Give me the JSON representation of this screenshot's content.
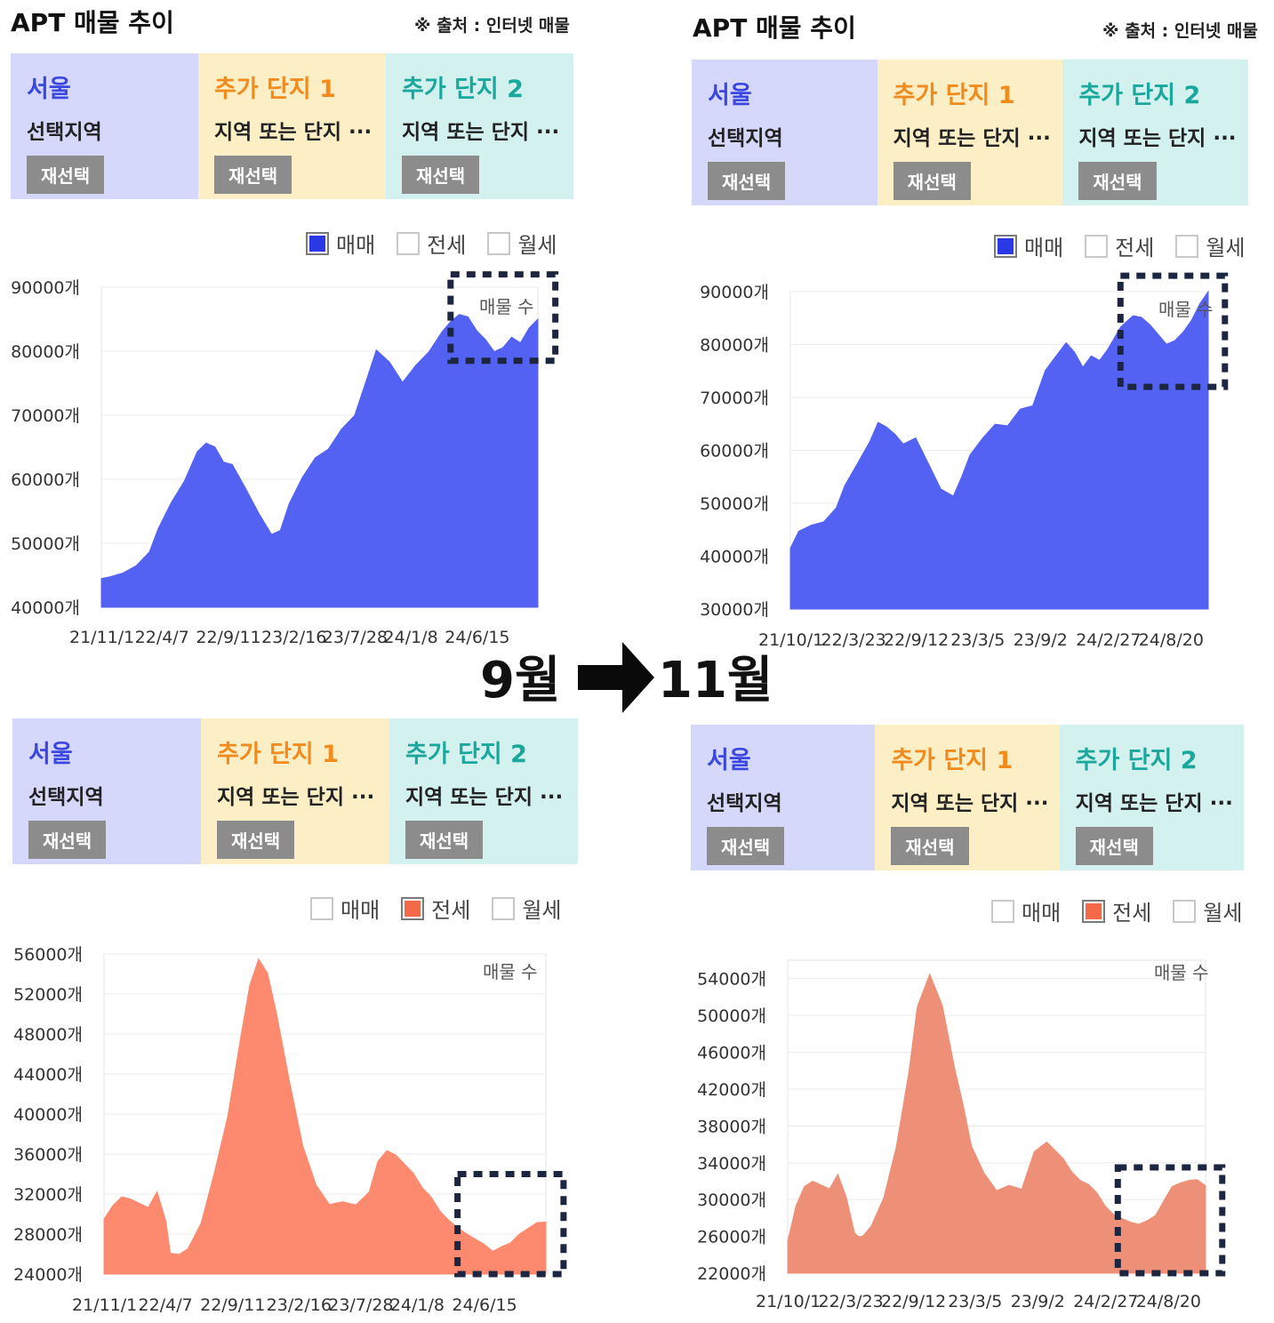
{
  "panels": [
    {
      "title": "APT 매물 추이",
      "source": "※ 출처 : 인터넷 매물",
      "tabs": [
        {
          "head": "서울",
          "sub": "선택지역",
          "btn": "재선택"
        },
        {
          "head": "추가 단지 1",
          "sub": "지역 또는 단지 ···",
          "btn": "재선택"
        },
        {
          "head": "추가 단지 2",
          "sub": "지역 또는 단지 ···",
          "btn": "재선택"
        }
      ],
      "legend": [
        {
          "label": "매매",
          "checked": true
        },
        {
          "label": "전세",
          "checked": false
        },
        {
          "label": "월세",
          "checked": false
        }
      ]
    },
    {
      "title": "APT 매물 추이",
      "source": "※ 출처 : 인터넷 매물",
      "tabs": [
        {
          "head": "서울",
          "sub": "선택지역",
          "btn": "재선택"
        },
        {
          "head": "추가 단지 1",
          "sub": "지역 또는 단지 ···",
          "btn": "재선택"
        },
        {
          "head": "추가 단지 2",
          "sub": "지역 또는 단지 ···",
          "btn": "재선택"
        }
      ],
      "legend": [
        {
          "label": "매매",
          "checked": true
        },
        {
          "label": "전세",
          "checked": false
        },
        {
          "label": "월세",
          "checked": false
        }
      ]
    },
    {
      "title": "",
      "source": "",
      "tabs": [
        {
          "head": "서울",
          "sub": "선택지역",
          "btn": "재선택"
        },
        {
          "head": "추가 단지 1",
          "sub": "지역 또는 단지 ···",
          "btn": "재선택"
        },
        {
          "head": "추가 단지 2",
          "sub": "지역 또는 단지 ···",
          "btn": "재선택"
        }
      ],
      "legend": [
        {
          "label": "매매",
          "checked": false
        },
        {
          "label": "전세",
          "checked": true
        },
        {
          "label": "월세",
          "checked": false
        }
      ]
    },
    {
      "title": "",
      "source": "",
      "tabs": [
        {
          "head": "서울",
          "sub": "선택지역",
          "btn": "재선택"
        },
        {
          "head": "추가 단지 1",
          "sub": "지역 또는 단지 ···",
          "btn": "재선택"
        },
        {
          "head": "추가 단지 2",
          "sub": "지역 또는 단지 ···",
          "btn": "재선택"
        }
      ],
      "legend": [
        {
          "label": "매매",
          "checked": false
        },
        {
          "label": "전세",
          "checked": true
        },
        {
          "label": "월세",
          "checked": false
        }
      ]
    }
  ],
  "colors": {
    "tab_bg": [
      "#d5d7fb",
      "#fdefc5",
      "#d3f1ee"
    ],
    "tab_head": [
      "#3b48e0",
      "#f28b1e",
      "#1aa89c"
    ],
    "sale": "#5462f4",
    "jeonse_sep": "#fd8a6e",
    "jeonse_nov": "#ee9077",
    "check_sale": "#2b38e6",
    "check_jeonse": "#f36a4b",
    "highlight_box": "#1c2640"
  },
  "transition": {
    "from": "9월",
    "to": "11월"
  },
  "chart_data": [
    {
      "type": "area",
      "series_label": "매물 수",
      "ylim": [
        40000,
        90000
      ],
      "y_ticks": [
        "40000개",
        "50000개",
        "60000개",
        "70000개",
        "80000개",
        "90000개"
      ],
      "x_ticks": [
        "21/11/1",
        "22/4/7",
        "22/9/11",
        "23/2/16",
        "23/7/28",
        "24/1/8",
        "24/6/15"
      ],
      "x_tick_positions": [
        0,
        0.15,
        0.29,
        0.44,
        0.58,
        0.72,
        0.86
      ],
      "x": [
        0,
        0.02,
        0.05,
        0.08,
        0.11,
        0.13,
        0.16,
        0.19,
        0.22,
        0.24,
        0.26,
        0.28,
        0.3,
        0.33,
        0.36,
        0.39,
        0.41,
        0.43,
        0.46,
        0.49,
        0.52,
        0.55,
        0.58,
        0.61,
        0.63,
        0.66,
        0.69,
        0.72,
        0.75,
        0.78,
        0.8,
        0.82,
        0.84,
        0.86,
        0.88,
        0.9,
        0.92,
        0.94,
        0.96,
        0.98,
        1
      ],
      "y": [
        44500,
        45000,
        45500,
        46500,
        48500,
        52000,
        56000,
        60000,
        64500,
        65700,
        65000,
        62500,
        62000,
        59000,
        55000,
        51500,
        52000,
        56000,
        60000,
        63000,
        65000,
        68000,
        70000,
        76000,
        80000,
        78000,
        75500,
        78000,
        80000,
        83000,
        84500,
        85500,
        85000,
        83500,
        82000,
        80000,
        80500,
        82000,
        81000,
        84000,
        85000
      ],
      "highlight": {
        "x0": 0.8,
        "x1": 1.04,
        "y0": 78500,
        "y1": 92000
      }
    },
    {
      "type": "area",
      "series_label": "매물 수",
      "ylim": [
        30000,
        90000
      ],
      "y_ticks": [
        "30000개",
        "40000개",
        "50000개",
        "60000개",
        "70000개",
        "80000개",
        "90000개"
      ],
      "x_ticks": [
        "21/10/1",
        "22/3/23",
        "22/9/12",
        "23/3/5",
        "23/9/2",
        "24/2/27",
        "24/8/20"
      ],
      "x_tick_positions": [
        0,
        0.15,
        0.3,
        0.46,
        0.61,
        0.76,
        0.91
      ],
      "x": [
        0,
        0.02,
        0.05,
        0.08,
        0.11,
        0.13,
        0.16,
        0.19,
        0.21,
        0.23,
        0.25,
        0.27,
        0.3,
        0.33,
        0.36,
        0.39,
        0.41,
        0.43,
        0.46,
        0.49,
        0.52,
        0.55,
        0.58,
        0.61,
        0.63,
        0.66,
        0.68,
        0.7,
        0.72,
        0.74,
        0.76,
        0.79,
        0.82,
        0.84,
        0.86,
        0.88,
        0.9,
        0.92,
        0.94,
        0.96,
        0.98,
        1
      ],
      "y": [
        41500,
        45000,
        46000,
        46500,
        49000,
        53000,
        57000,
        62000,
        65500,
        64500,
        63000,
        61000,
        62000,
        58000,
        53000,
        51500,
        55000,
        59000,
        62000,
        64500,
        65000,
        68000,
        68500,
        75000,
        77000,
        80000,
        79000,
        76000,
        78000,
        77000,
        79000,
        83000,
        85000,
        85500,
        84000,
        82000,
        80000,
        80500,
        82000,
        85000,
        88000,
        90000
      ],
      "highlight": {
        "x0": 0.79,
        "x1": 1.04,
        "y0": 72000,
        "y1": 93000
      }
    },
    {
      "type": "area",
      "series_label": "매물 수",
      "ylim": [
        24000,
        56000
      ],
      "y_ticks": [
        "24000개",
        "28000개",
        "32000개",
        "36000개",
        "40000개",
        "44000개",
        "48000개",
        "52000개",
        "56000개"
      ],
      "x_ticks": [
        "21/11/1",
        "22/4/7",
        "22/9/11",
        "23/2/16",
        "23/7/28",
        "24/1/8",
        "24/6/15"
      ],
      "x_tick_positions": [
        0,
        0.15,
        0.29,
        0.44,
        0.58,
        0.72,
        0.86
      ],
      "x": [
        0,
        0.02,
        0.04,
        0.06,
        0.08,
        0.1,
        0.12,
        0.14,
        0.15,
        0.17,
        0.19,
        0.22,
        0.25,
        0.28,
        0.31,
        0.33,
        0.35,
        0.37,
        0.39,
        0.42,
        0.45,
        0.48,
        0.51,
        0.54,
        0.57,
        0.6,
        0.62,
        0.64,
        0.66,
        0.68,
        0.7,
        0.72,
        0.74,
        0.76,
        0.78,
        0.8,
        0.82,
        0.84,
        0.86,
        0.88,
        0.9,
        0.92,
        0.94,
        0.96,
        0.98,
        1
      ],
      "y": [
        29500,
        31000,
        31800,
        31500,
        31000,
        30500,
        32000,
        29500,
        26200,
        26000,
        26500,
        29000,
        34000,
        40000,
        48000,
        53000,
        55500,
        54000,
        50000,
        43000,
        37000,
        33000,
        31000,
        31200,
        30800,
        32000,
        35500,
        36500,
        36000,
        35000,
        34000,
        32500,
        31500,
        30500,
        29500,
        28700,
        28000,
        27400,
        26800,
        26500,
        26900,
        27200,
        28000,
        28500,
        29000,
        29200
      ],
      "highlight": {
        "x0": 0.8,
        "x1": 1.04,
        "y0": 24000,
        "y1": 34000
      }
    },
    {
      "type": "area",
      "series_label": "매물 수",
      "ylim": [
        22000,
        56000
      ],
      "y_ticks": [
        "22000개",
        "26000개",
        "30000개",
        "34000개",
        "38000개",
        "42000개",
        "46000개",
        "50000개",
        "54000개"
      ],
      "x_ticks": [
        "21/10/1",
        "22/3/23",
        "22/9/12",
        "23/3/5",
        "23/9/2",
        "24/2/27",
        "24/8/20"
      ],
      "x_tick_positions": [
        0,
        0.15,
        0.3,
        0.46,
        0.61,
        0.76,
        0.91
      ],
      "x": [
        0,
        0.02,
        0.04,
        0.06,
        0.08,
        0.1,
        0.12,
        0.14,
        0.16,
        0.17,
        0.18,
        0.2,
        0.23,
        0.26,
        0.29,
        0.31,
        0.34,
        0.37,
        0.4,
        0.42,
        0.44,
        0.47,
        0.5,
        0.53,
        0.56,
        0.59,
        0.62,
        0.64,
        0.66,
        0.68,
        0.7,
        0.72,
        0.74,
        0.76,
        0.78,
        0.8,
        0.82,
        0.84,
        0.86,
        0.88,
        0.9,
        0.92,
        0.94,
        0.96,
        0.98,
        1
      ],
      "y": [
        25500,
        29500,
        31500,
        32000,
        31500,
        31000,
        32500,
        30500,
        26500,
        26000,
        26000,
        27000,
        30000,
        36000,
        44000,
        51000,
        54500,
        51000,
        44000,
        40000,
        36000,
        33000,
        31000,
        31500,
        31000,
        35000,
        36500,
        35500,
        34500,
        33000,
        32000,
        31500,
        30500,
        29500,
        28500,
        28000,
        27500,
        27200,
        27500,
        28500,
        30000,
        31500,
        31800,
        32000,
        32000,
        31500
      ],
      "highlight": {
        "x0": 0.79,
        "x1": 1.04,
        "y0": 22000,
        "y1": 33500
      }
    }
  ]
}
